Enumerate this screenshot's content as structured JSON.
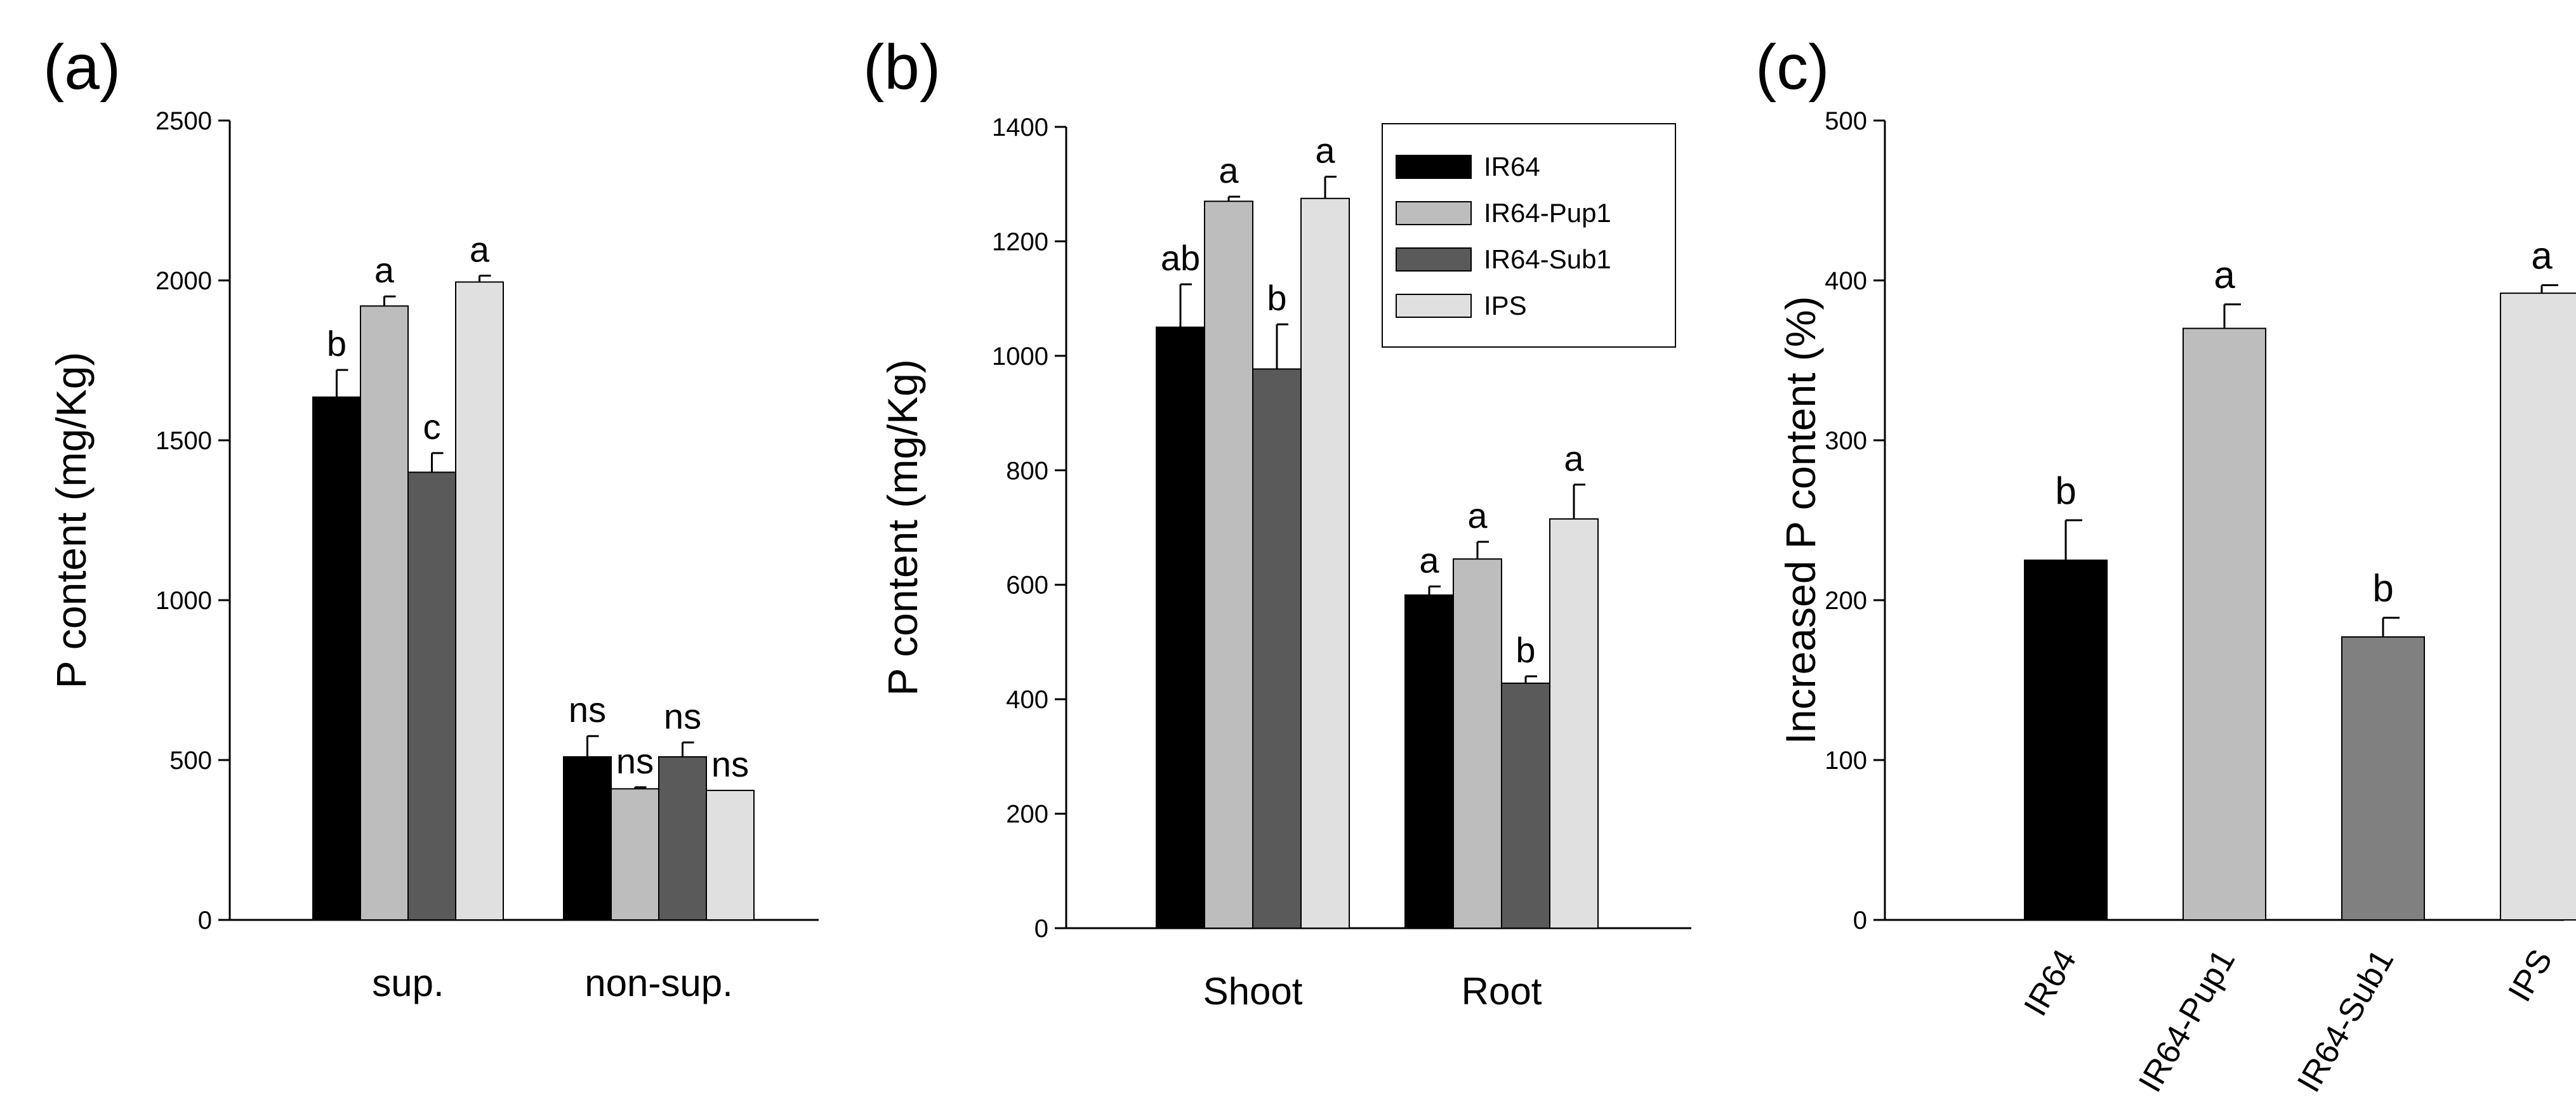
{
  "colors": {
    "IR64": "#000000",
    "IR64-Pup1": "#bdbdbd",
    "IR64-Sub1": "#5a5a5a",
    "IPS": "#e0e0e0",
    "c_IR64-Sub1": "#808080"
  },
  "chart_data": [
    {
      "panel_label": "(a)",
      "type": "bar",
      "ylabel": "P content (mg/Kg)",
      "xlabel": "",
      "ylim": [
        0,
        2500
      ],
      "yticks": [
        "0",
        "500",
        "1000",
        "1500",
        "2000",
        "2500"
      ],
      "categories": [
        "sup.",
        "non-sup."
      ],
      "series": [
        {
          "name": "IR64",
          "values": [
            1635,
            510
          ],
          "errors": [
            85,
            65
          ],
          "letters": [
            "b",
            "ns"
          ]
        },
        {
          "name": "IR64-Pup1",
          "values": [
            1920,
            410
          ],
          "errors": [
            30,
            5
          ],
          "letters": [
            "a",
            "ns"
          ]
        },
        {
          "name": "IR64-Sub1",
          "values": [
            1400,
            510
          ],
          "errors": [
            60,
            45
          ],
          "letters": [
            "c",
            "ns"
          ]
        },
        {
          "name": "IPS",
          "values": [
            1995,
            405
          ],
          "errors": [
            20,
            0
          ],
          "letters": [
            "a",
            "ns"
          ]
        }
      ]
    },
    {
      "panel_label": "(b)",
      "type": "bar",
      "ylabel": "P content (mg/Kg)",
      "xlabel": "",
      "ylim": [
        0,
        1400
      ],
      "yticks": [
        "0",
        "200",
        "400",
        "600",
        "800",
        "1000",
        "1200",
        "1400"
      ],
      "categories": [
        "Shoot",
        "Root"
      ],
      "legend": {
        "placement": "top-right",
        "entries": [
          "IR64",
          "IR64-Pup1",
          "IR64-Sub1",
          "IPS"
        ]
      },
      "series": [
        {
          "name": "IR64",
          "values": [
            1050,
            582
          ],
          "errors": [
            75,
            15
          ],
          "letters": [
            "ab",
            "a"
          ]
        },
        {
          "name": "IR64-Pup1",
          "values": [
            1270,
            645
          ],
          "errors": [
            8,
            30
          ],
          "letters": [
            "a",
            "a"
          ]
        },
        {
          "name": "IR64-Sub1",
          "values": [
            977,
            428
          ],
          "errors": [
            78,
            12
          ],
          "letters": [
            "b",
            "b"
          ]
        },
        {
          "name": "IPS",
          "values": [
            1275,
            715
          ],
          "errors": [
            38,
            60
          ],
          "letters": [
            "a",
            "a"
          ]
        }
      ]
    },
    {
      "panel_label": "(c)",
      "type": "bar",
      "ylabel": "Increased P content (%)",
      "xlabel": "",
      "ylim": [
        0,
        500
      ],
      "yticks": [
        "0",
        "100",
        "200",
        "300",
        "400",
        "500"
      ],
      "categories": [
        "IR64",
        "IR64-Pup1",
        "IR64-Sub1",
        "IPS"
      ],
      "values": [
        225,
        370,
        177,
        392
      ],
      "errors": [
        25,
        15,
        12,
        5
      ],
      "letters": [
        "b",
        "a",
        "b",
        "a"
      ]
    }
  ]
}
